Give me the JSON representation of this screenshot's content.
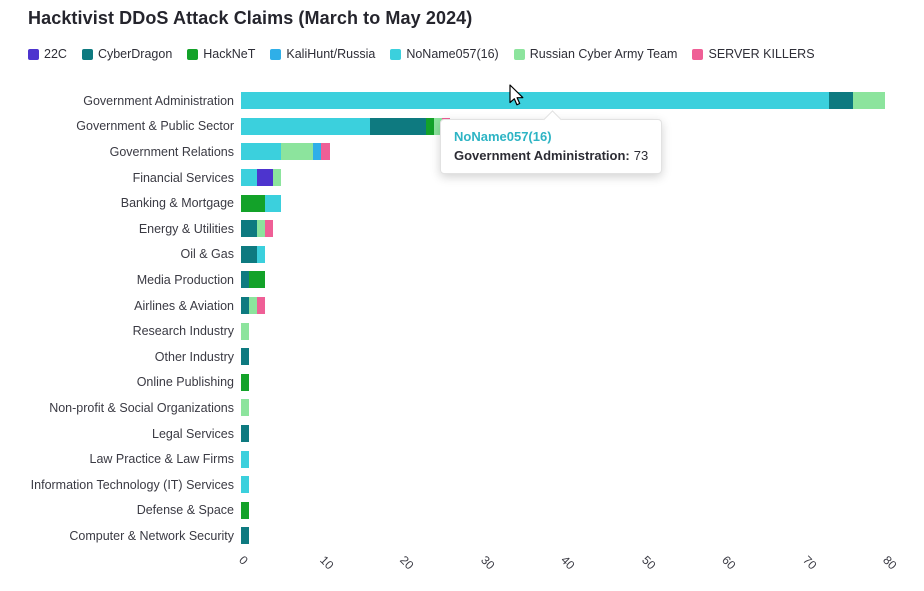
{
  "title": "Hacktivist DDoS Attack Claims (March to May 2024)",
  "legend": [
    {
      "label": "22C",
      "color": "#4d34ce"
    },
    {
      "label": "CyberDragon",
      "color": "#0e7a80"
    },
    {
      "label": "HackNeT",
      "color": "#13a229"
    },
    {
      "label": "KaliHunt/Russia",
      "color": "#2fafe8"
    },
    {
      "label": "NoName057(16)",
      "color": "#3bd0dd"
    },
    {
      "label": "Russian Cyber Army Team",
      "color": "#8ce49d"
    },
    {
      "label": "SERVER KILLERS",
      "color": "#ef5f96"
    }
  ],
  "tooltip": {
    "series": "NoName057(16)",
    "series_color": "#2db4c4",
    "category_label": "Government Administration:",
    "value": "73"
  },
  "chart_data": {
    "type": "bar",
    "orientation": "horizontal",
    "stacked": true,
    "title": "Hacktivist DDoS Attack Claims (March to May 2024)",
    "xlabel": "",
    "ylabel": "",
    "xlim": [
      0,
      80
    ],
    "xticks": [
      0,
      10,
      20,
      30,
      40,
      50,
      60,
      70,
      80
    ],
    "grid": false,
    "legend_position": "top",
    "categories": [
      "Government Administration",
      "Government & Public Sector",
      "Government Relations",
      "Financial Services",
      "Banking & Mortgage",
      "Energy & Utilities",
      "Oil & Gas",
      "Media Production",
      "Airlines & Aviation",
      "Research Industry",
      "Other Industry",
      "Online Publishing",
      "Non-profit & Social Organizations",
      "Legal Services",
      "Law Practice & Law Firms",
      "Information Technology (IT) Services",
      "Defense & Space",
      "Computer & Network Security"
    ],
    "bars": [
      {
        "category": "Government Administration",
        "segments": [
          {
            "name": "NoName057(16)",
            "value": 73
          },
          {
            "name": "CyberDragon",
            "value": 3
          },
          {
            "name": "Russian Cyber Army Team",
            "value": 4
          }
        ]
      },
      {
        "category": "Government & Public Sector",
        "segments": [
          {
            "name": "NoName057(16)",
            "value": 16
          },
          {
            "name": "CyberDragon",
            "value": 7
          },
          {
            "name": "HackNeT",
            "value": 1
          },
          {
            "name": "Russian Cyber Army Team",
            "value": 1
          },
          {
            "name": "SERVER KILLERS",
            "value": 1
          }
        ]
      },
      {
        "category": "Government Relations",
        "segments": [
          {
            "name": "NoName057(16)",
            "value": 5
          },
          {
            "name": "Russian Cyber Army Team",
            "value": 4
          },
          {
            "name": "KaliHunt/Russia",
            "value": 1
          },
          {
            "name": "SERVER KILLERS",
            "value": 1
          }
        ]
      },
      {
        "category": "Financial Services",
        "segments": [
          {
            "name": "NoName057(16)",
            "value": 2
          },
          {
            "name": "22C",
            "value": 2
          },
          {
            "name": "Russian Cyber Army Team",
            "value": 1
          }
        ]
      },
      {
        "category": "Banking & Mortgage",
        "segments": [
          {
            "name": "HackNeT",
            "value": 3
          },
          {
            "name": "NoName057(16)",
            "value": 2
          }
        ]
      },
      {
        "category": "Energy & Utilities",
        "segments": [
          {
            "name": "CyberDragon",
            "value": 2
          },
          {
            "name": "Russian Cyber Army Team",
            "value": 1
          },
          {
            "name": "SERVER KILLERS",
            "value": 1
          }
        ]
      },
      {
        "category": "Oil & Gas",
        "segments": [
          {
            "name": "CyberDragon",
            "value": 2
          },
          {
            "name": "NoName057(16)",
            "value": 1
          }
        ]
      },
      {
        "category": "Media Production",
        "segments": [
          {
            "name": "CyberDragon",
            "value": 1
          },
          {
            "name": "HackNeT",
            "value": 2
          }
        ]
      },
      {
        "category": "Airlines & Aviation",
        "segments": [
          {
            "name": "CyberDragon",
            "value": 1
          },
          {
            "name": "Russian Cyber Army Team",
            "value": 1
          },
          {
            "name": "SERVER KILLERS",
            "value": 1
          }
        ]
      },
      {
        "category": "Research Industry",
        "segments": [
          {
            "name": "Russian Cyber Army Team",
            "value": 1
          }
        ]
      },
      {
        "category": "Other Industry",
        "segments": [
          {
            "name": "CyberDragon",
            "value": 1
          }
        ]
      },
      {
        "category": "Online Publishing",
        "segments": [
          {
            "name": "HackNeT",
            "value": 1
          }
        ]
      },
      {
        "category": "Non-profit & Social Organizations",
        "segments": [
          {
            "name": "Russian Cyber Army Team",
            "value": 1
          }
        ]
      },
      {
        "category": "Legal Services",
        "segments": [
          {
            "name": "CyberDragon",
            "value": 1
          }
        ]
      },
      {
        "category": "Law Practice & Law Firms",
        "segments": [
          {
            "name": "NoName057(16)",
            "value": 1
          }
        ]
      },
      {
        "category": "Information Technology (IT) Services",
        "segments": [
          {
            "name": "NoName057(16)",
            "value": 1
          }
        ]
      },
      {
        "category": "Defense & Space",
        "segments": [
          {
            "name": "HackNeT",
            "value": 1
          }
        ]
      },
      {
        "category": "Computer & Network Security",
        "segments": [
          {
            "name": "CyberDragon",
            "value": 1
          }
        ]
      }
    ]
  }
}
